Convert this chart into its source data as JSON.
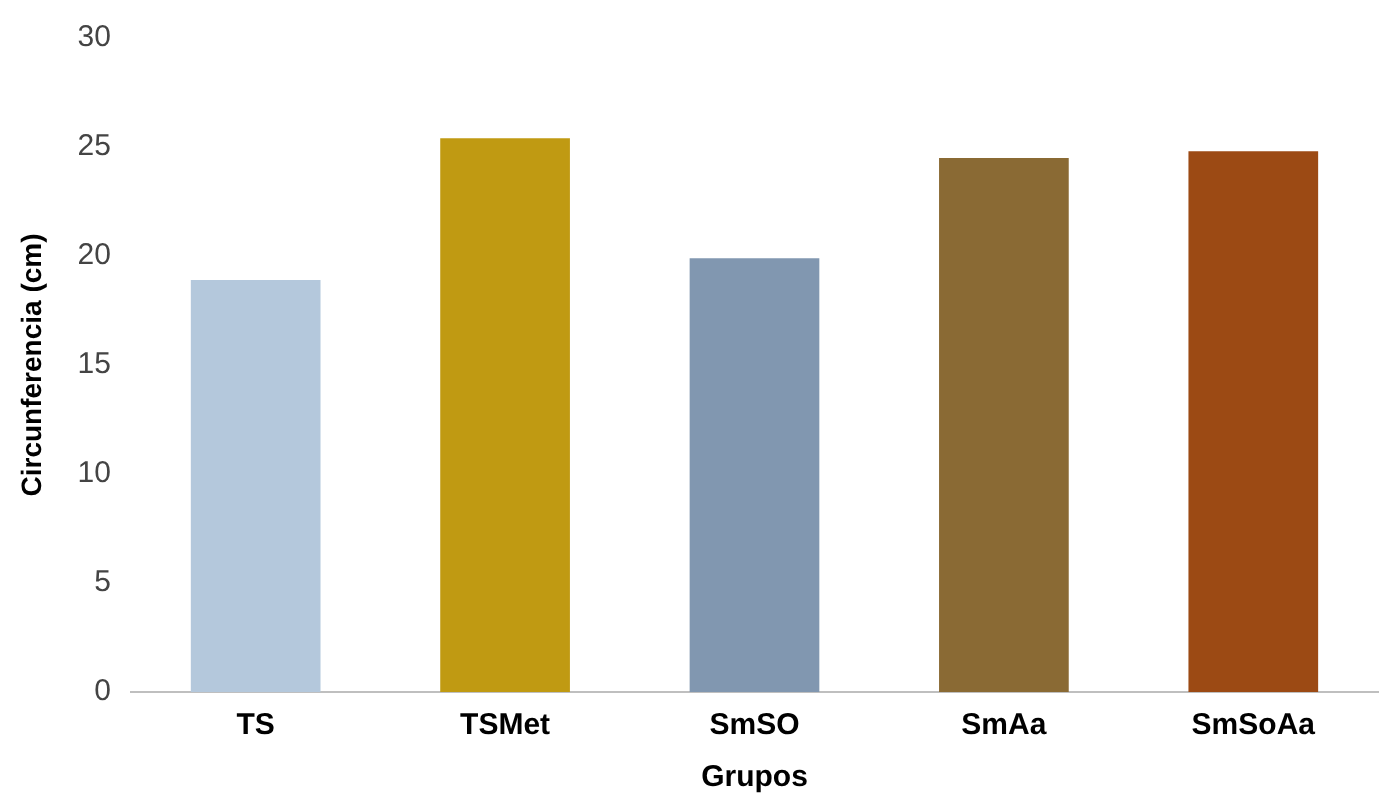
{
  "chart_data": {
    "type": "bar",
    "xlabel": "Grupos",
    "ylabel": "Circunferencia (cm)",
    "categories": [
      "TS",
      "TSMet",
      "SmSO",
      "SmAa",
      "SmSoAa"
    ],
    "values": [
      18.9,
      25.4,
      19.9,
      24.5,
      24.8
    ],
    "colors": [
      "#b4c8dc",
      "#c09a12",
      "#8197b0",
      "#8a6a34",
      "#9c4a14"
    ],
    "ylim": [
      0,
      30
    ],
    "yticks": [
      0,
      5,
      10,
      15,
      20,
      25,
      30
    ],
    "grid": false,
    "legend": false
  }
}
